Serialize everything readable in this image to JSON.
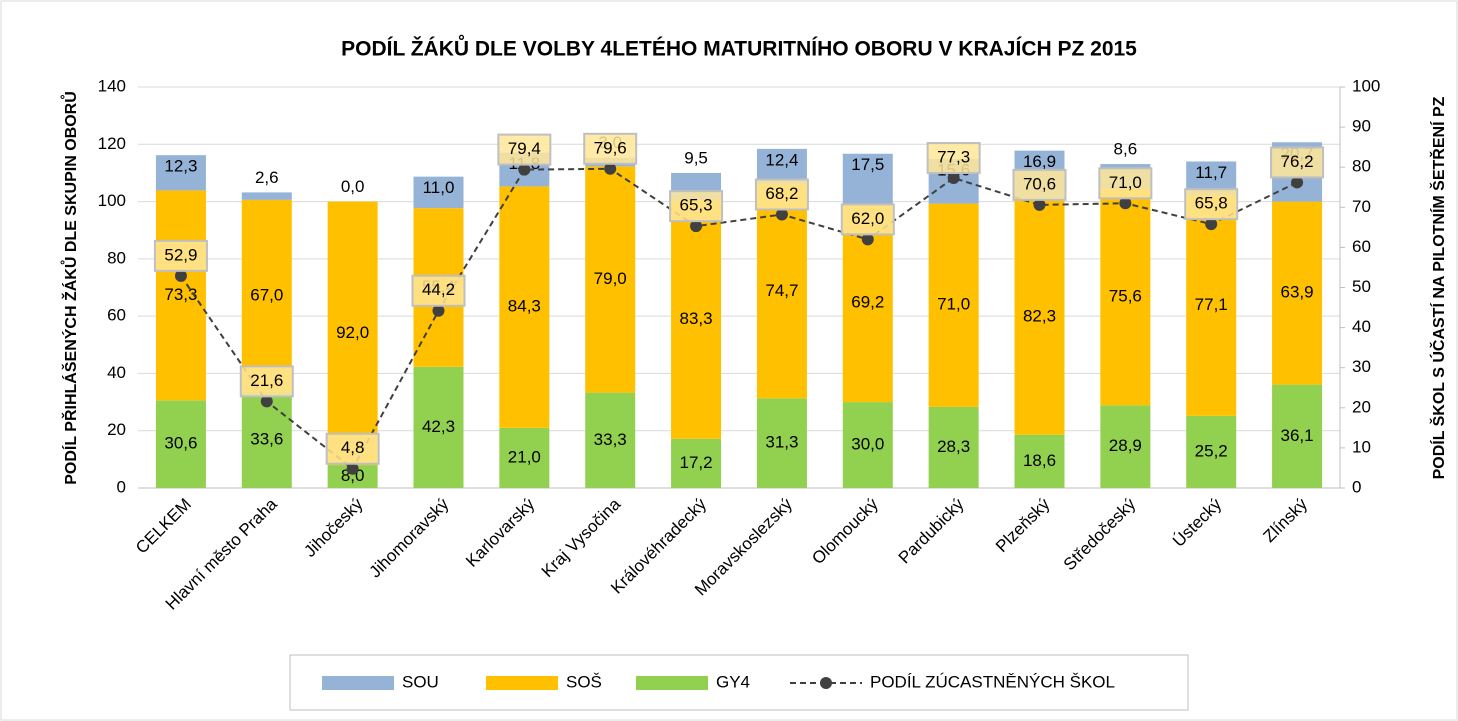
{
  "chart_data": {
    "type": "bar",
    "stacked": true,
    "title": "PODÍL ŽÁKŮ DLE VOLBY 4LETÉHO MATURITNÍHO OBORU V KRAJÍCH PZ 2015",
    "y_label": "PODÍL PŘIHLÁŠENÝCH ŽÁKŮ DLE SKUPIN OBORŮ",
    "y2_label": "PODÍL ŠKOL S ÚČASTÍ NA PILOTNÍM ŠETŘENÍ PZ",
    "categories": [
      "CELKEM",
      "Hlavní město Praha",
      "Jihočeský",
      "Jihomoravský",
      "Karlovarský",
      "Kraj Vysočina",
      "Královéhradecký",
      "Moravskoslezský",
      "Olomoucký",
      "Pardubický",
      "Plzeňský",
      "Středočeský",
      "Ústecký",
      "Zlínský"
    ],
    "series": [
      {
        "name": "GY4",
        "type": "bar",
        "color": "#92d050",
        "values": [
          30.6,
          33.6,
          8.0,
          42.3,
          21.0,
          33.3,
          17.2,
          31.3,
          30.0,
          28.3,
          18.6,
          28.9,
          25.2,
          36.1
        ],
        "value_labels": [
          "30,6",
          "33,6",
          "8,0",
          "42,3",
          "21,0",
          "33,3",
          "17,2",
          "31,3",
          "30,0",
          "28,3",
          "18,6",
          "28,9",
          "25,2",
          "36,1"
        ]
      },
      {
        "name": "SOŠ",
        "type": "bar",
        "color": "#ffc000",
        "values": [
          73.3,
          67.0,
          92.0,
          55.4,
          84.3,
          79.0,
          83.3,
          74.7,
          69.2,
          71.0,
          82.3,
          75.6,
          77.1,
          63.9
        ],
        "value_labels": [
          "73,3",
          "67,0",
          "92,0",
          "55,4",
          "84,3",
          "79,0",
          "83,3",
          "74,7",
          "69,2",
          "71,0",
          "82,3",
          "75,6",
          "77,1",
          "63,9"
        ]
      },
      {
        "name": "SOU",
        "type": "bar",
        "color": "#95b3d7",
        "values": [
          12.3,
          2.6,
          0.0,
          11.0,
          11.8,
          3.0,
          9.5,
          12.4,
          17.5,
          15.6,
          16.9,
          8.6,
          11.7,
          20.7
        ],
        "value_labels": [
          "12,3",
          "2,6",
          "0,0",
          "11,0",
          "11,8",
          "3,0",
          "9,5",
          "12,4",
          "17,5",
          "15,6",
          "16,9",
          "8,6",
          "11,7",
          "20,7"
        ]
      },
      {
        "name": "PODÍL ZÚCASTNĚNÝCH ŠKOL",
        "type": "line",
        "axis": "y2",
        "color": "#404040",
        "values": [
          52.9,
          21.6,
          4.8,
          44.2,
          79.4,
          79.6,
          65.3,
          68.2,
          62.0,
          77.3,
          70.6,
          71.0,
          65.8,
          76.2
        ],
        "value_labels": [
          "52,9",
          "21,6",
          "4,8",
          "44,2",
          "79,4",
          "79,6",
          "65,3",
          "68,2",
          "62,0",
          "77,3",
          "70,6",
          "71,0",
          "65,8",
          "76,2"
        ]
      }
    ],
    "ylim": [
      0,
      140
    ],
    "yticks": [
      0,
      20,
      40,
      60,
      80,
      100,
      120,
      140
    ],
    "y2lim": [
      0,
      100
    ],
    "y2ticks": [
      0,
      10,
      20,
      30,
      40,
      50,
      60,
      70,
      80,
      90,
      100
    ],
    "grid": true,
    "legend": "bottom"
  }
}
